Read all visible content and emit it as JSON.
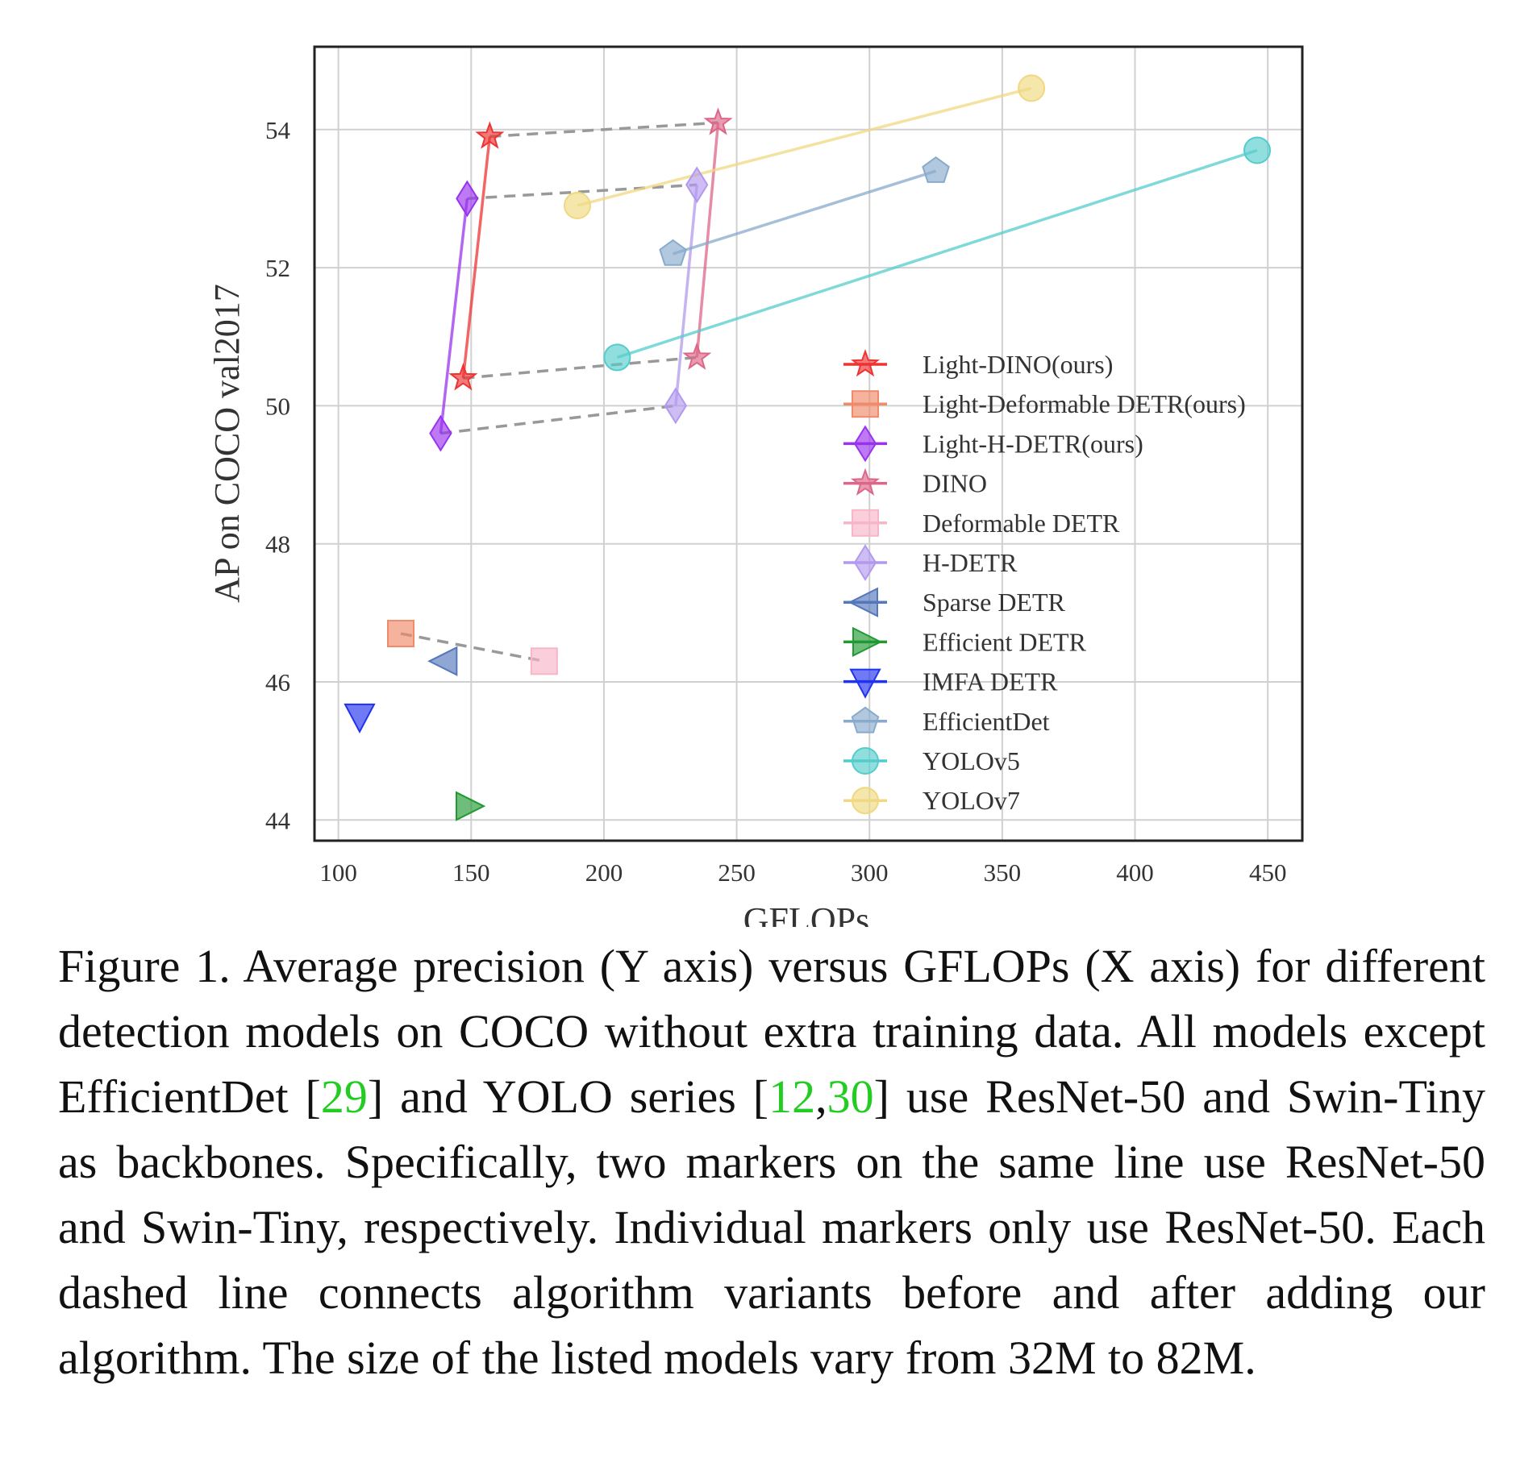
{
  "chart_data": {
    "type": "scatter",
    "xlabel": "GFLOPs",
    "ylabel": "AP on COCO val2017",
    "xlim": [
      91,
      463
    ],
    "ylim": [
      43.7,
      55.2
    ],
    "xticks": [
      "100",
      "150",
      "200",
      "250",
      "300",
      "350",
      "400",
      "450"
    ],
    "yticks": [
      "44",
      "46",
      "48",
      "50",
      "52",
      "54"
    ],
    "grid": true,
    "legend_position": "lower-right",
    "series": [
      {
        "name": "Light-DINO(ours)",
        "marker": "star",
        "color": "#ee3333",
        "connected": true,
        "points": [
          [
            147,
            50.4
          ],
          [
            157,
            53.9
          ]
        ]
      },
      {
        "name": "Light-Deformable DETR(ours)",
        "marker": "square",
        "color": "#f08a6a",
        "connected": false,
        "points": [
          [
            123.5,
            46.7
          ]
        ]
      },
      {
        "name": "Light-H-DETR(ours)",
        "marker": "diamond",
        "color": "#9933ee",
        "connected": true,
        "points": [
          [
            138.5,
            49.6
          ],
          [
            148.5,
            53.0
          ]
        ]
      },
      {
        "name": "DINO",
        "marker": "star",
        "color": "#dd6688",
        "connected": true,
        "points": [
          [
            235,
            50.7
          ],
          [
            243,
            54.1
          ]
        ]
      },
      {
        "name": "Deformable DETR",
        "marker": "square",
        "color": "#f7b6c8",
        "connected": false,
        "points": [
          [
            177.5,
            46.3
          ]
        ]
      },
      {
        "name": "H-DETR",
        "marker": "diamond",
        "color": "#b299ee",
        "connected": true,
        "points": [
          [
            227,
            50.0
          ],
          [
            235,
            53.2
          ]
        ]
      },
      {
        "name": "Sparse DETR",
        "marker": "triangle-left",
        "color": "#5577bb",
        "connected": false,
        "points": [
          [
            140,
            46.3
          ]
        ]
      },
      {
        "name": "Efficient DETR",
        "marker": "triangle-right",
        "color": "#229933",
        "connected": false,
        "points": [
          [
            149,
            44.2
          ]
        ]
      },
      {
        "name": "IMFA DETR",
        "marker": "triangle-down",
        "color": "#2233ee",
        "connected": false,
        "points": [
          [
            108,
            45.5
          ]
        ]
      },
      {
        "name": "EfficientDet",
        "marker": "pentagon",
        "color": "#88aacc",
        "connected": true,
        "points": [
          [
            226,
            52.2
          ],
          [
            325,
            53.4
          ]
        ]
      },
      {
        "name": "YOLOv5",
        "marker": "circle",
        "color": "#55cccc",
        "connected": true,
        "points": [
          [
            205,
            50.7
          ],
          [
            446,
            53.7
          ]
        ]
      },
      {
        "name": "YOLOv7",
        "marker": "circle",
        "color": "#f0d880",
        "connected": true,
        "points": [
          [
            190,
            52.9
          ],
          [
            361,
            54.6
          ]
        ]
      }
    ],
    "dashed_links": [
      [
        [
          157,
          53.9
        ],
        [
          243,
          54.1
        ]
      ],
      [
        [
          148.5,
          53.0
        ],
        [
          235,
          53.2
        ]
      ],
      [
        [
          147,
          50.4
        ],
        [
          235,
          50.7
        ]
      ],
      [
        [
          138.5,
          49.6
        ],
        [
          227,
          50.0
        ]
      ],
      [
        [
          123.5,
          46.7
        ],
        [
          177.5,
          46.3
        ]
      ]
    ]
  },
  "caption": {
    "p1": "Figure 1. Average precision (Y axis) versus GFLOPs (X axis) for different detection models on COCO without extra training data. All models except EfficientDet [",
    "ref1": "29",
    "p2": "] and YOLO series [",
    "ref2": "12",
    "sep": ",",
    "ref3": "30",
    "p3": "] use ResNet-50 and Swin-Tiny as backbones. Specifically, two markers on the same line use ResNet-50 and Swin-Tiny, respectively. Individual markers only use ResNet-50. Each dashed line connects algorithm variants before and after adding our algorithm. The size of the listed models vary from 32M to 82M."
  }
}
